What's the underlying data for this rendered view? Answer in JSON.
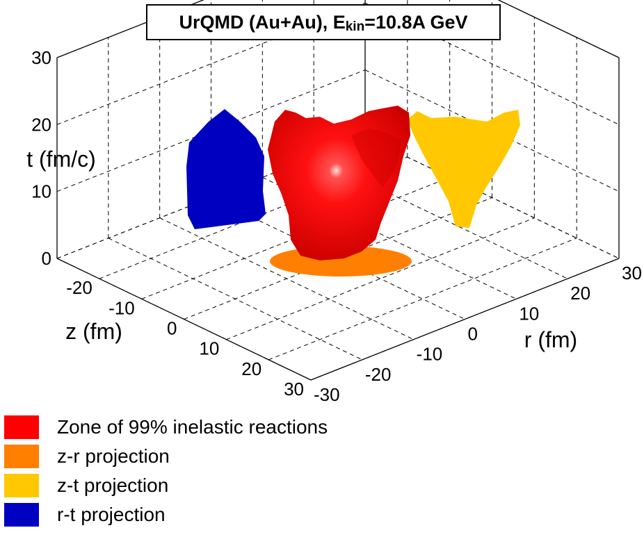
{
  "chart_data": {
    "type": "3d-surface",
    "title_parts": {
      "main": "UrQMD (Au+Au), E",
      "sub": "kin",
      "tail": "=10.8A GeV"
    },
    "z_axis": {
      "label": "z (fm)",
      "range": [
        -30,
        30
      ],
      "ticks": [
        "-20",
        "-10",
        "0",
        "10",
        "20",
        "30"
      ]
    },
    "r_axis": {
      "label": "r (fm)",
      "range": [
        -30,
        30
      ],
      "ticks": [
        "-30",
        "-20",
        "-10",
        "0",
        "10",
        "20",
        "30"
      ]
    },
    "t_axis": {
      "label": "t (fm/c)",
      "range": [
        0,
        30
      ],
      "ticks": [
        "0",
        "10",
        "20",
        "30"
      ]
    },
    "grid": true,
    "legend": [
      {
        "label": "Zone of 99% inelastic reactions",
        "color": "#ff0000"
      },
      {
        "label": "z-r projection",
        "color": "#ff8000"
      },
      {
        "label": "z-t projection",
        "color": "#ffc800"
      },
      {
        "label": "r-t projection",
        "color": "#0000c0"
      }
    ]
  }
}
